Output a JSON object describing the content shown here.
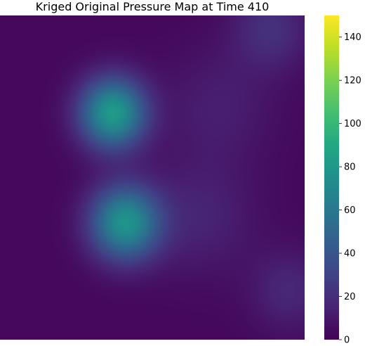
{
  "chart_data": {
    "type": "heatmap",
    "title": "Kriged Original Pressure Map at Time 410",
    "colormap": "viridis",
    "colorbar": {
      "range": [
        0,
        150
      ],
      "ticks": [
        0,
        20,
        40,
        60,
        80,
        100,
        120,
        140
      ],
      "tick_labels": [
        "0",
        "20",
        "40",
        "60",
        "80",
        "100",
        "120",
        "140"
      ]
    },
    "grid": false,
    "axes_visible": false,
    "x_range": [
      0,
      1
    ],
    "y_range": [
      0,
      1
    ],
    "background_value": 3,
    "features": [
      {
        "x": 0.37,
        "y": 0.3,
        "peak": 78,
        "spread": 0.105
      },
      {
        "x": 0.41,
        "y": 0.64,
        "peak": 73,
        "spread": 0.11
      },
      {
        "x": 0.89,
        "y": 0.04,
        "peak": 18,
        "spread": 0.12
      },
      {
        "x": 0.66,
        "y": 0.62,
        "peak": 12,
        "spread": 0.17
      },
      {
        "x": 0.72,
        "y": 0.28,
        "peak": 10,
        "spread": 0.17
      },
      {
        "x": 0.95,
        "y": 0.85,
        "peak": 14,
        "spread": 0.12
      }
    ]
  }
}
